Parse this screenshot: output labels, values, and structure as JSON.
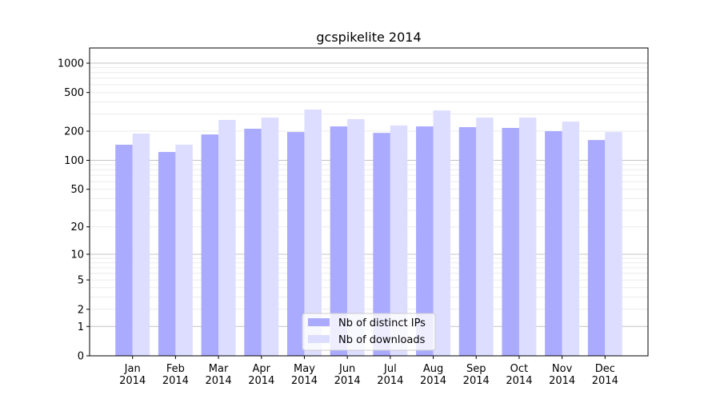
{
  "chart_data": {
    "type": "bar",
    "title": "gcspikelite 2014",
    "xlabel": "",
    "ylabel": "",
    "y_scale": "log(1+y)",
    "ylim": [
      0,
      1300
    ],
    "yticks": [
      0,
      1,
      2,
      5,
      10,
      20,
      50,
      100,
      200,
      500,
      1000
    ],
    "grid": "horizontal major and minor",
    "legend_placement": "lower center",
    "categories": [
      "Jan\n2014",
      "Feb\n2014",
      "Mar\n2014",
      "Apr\n2014",
      "May\n2014",
      "Jun\n2014",
      "Jul\n2014",
      "Aug\n2014",
      "Sep\n2014",
      "Oct\n2014",
      "Nov\n2014",
      "Dec\n2014"
    ],
    "series": [
      {
        "name": "Nb of distinct IPs",
        "color": "#aaaaff",
        "values": [
          145,
          122,
          185,
          212,
          196,
          224,
          192,
          224,
          220,
          216,
          200,
          162
        ]
      },
      {
        "name": "Nb of downloads",
        "color": "#ddddff",
        "values": [
          189,
          145,
          261,
          276,
          334,
          266,
          229,
          327,
          276,
          276,
          251,
          196
        ]
      }
    ]
  }
}
